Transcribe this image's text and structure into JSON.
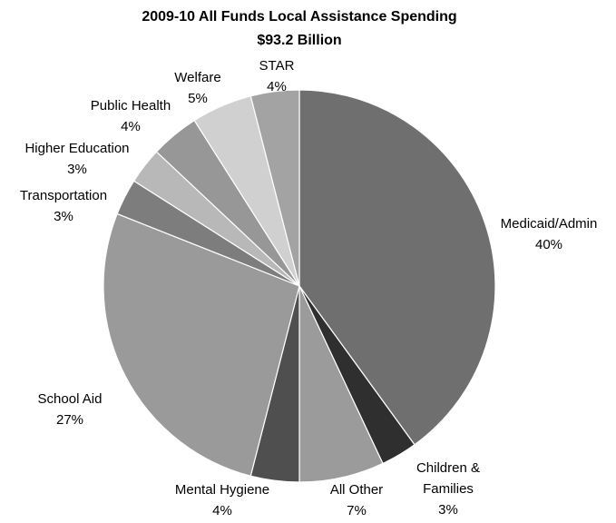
{
  "chart_data": {
    "type": "pie",
    "title": "2009-10 All Funds Local Assistance Spending",
    "subtitle": "$93.2 Billion",
    "start_angle_deg": 0,
    "direction": "clockwise",
    "slices": [
      {
        "label": "Medicaid/Admin",
        "display_pct": "40%",
        "value": 40,
        "color": "#6f6f6f"
      },
      {
        "label": "Children & Families",
        "display_pct": "3%",
        "value": 3,
        "color": "#2f2f2f"
      },
      {
        "label": "All Other",
        "display_pct": "7%",
        "value": 7,
        "color": "#9b9b9b"
      },
      {
        "label": "Mental Hygiene",
        "display_pct": "4%",
        "value": 4,
        "color": "#4f4f4f"
      },
      {
        "label": "School Aid",
        "display_pct": "27%",
        "value": 27,
        "color": "#9a9a9a"
      },
      {
        "label": "Transportation",
        "display_pct": "3%",
        "value": 3,
        "color": "#7d7d7d"
      },
      {
        "label": "Higher Education",
        "display_pct": "3%",
        "value": 3,
        "color": "#b8b8b8"
      },
      {
        "label": "Public Health",
        "display_pct": "4%",
        "value": 4,
        "color": "#979797"
      },
      {
        "label": "Welfare",
        "display_pct": "5%",
        "value": 5,
        "color": "#d0d0d0"
      },
      {
        "label": "STAR",
        "display_pct": "4%",
        "value": 4,
        "color": "#a3a3a3"
      }
    ]
  }
}
